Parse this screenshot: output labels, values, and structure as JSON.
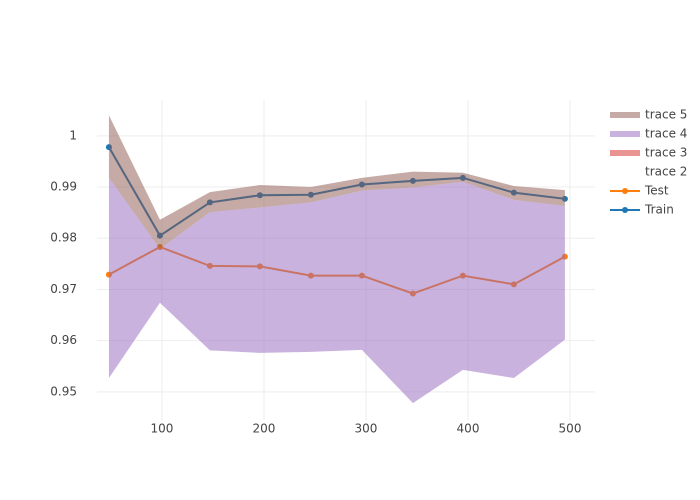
{
  "chart_data": {
    "type": "line",
    "x": [
      48,
      98,
      147,
      196,
      246,
      296,
      346,
      395,
      445,
      495
    ],
    "xlim": [
      36.3,
      524.5
    ],
    "xticks": [
      100,
      200,
      300,
      400,
      500
    ],
    "ylim": [
      0.9445,
      1.007
    ],
    "yticks": [
      0.95,
      0.96,
      0.97,
      0.98,
      0.99,
      1
    ],
    "grid": true,
    "series": [
      {
        "name": "trace 5",
        "kind": "band",
        "color": "rgba(140,86,75,0.5)",
        "upper": [
          1.004,
          0.9836,
          0.989,
          0.9904,
          0.99,
          0.9918,
          0.993,
          0.9928,
          0.9902,
          0.9894
        ],
        "lower": [
          0.9918,
          0.9779,
          0.9851,
          0.986,
          0.987,
          0.9893,
          0.9899,
          0.991,
          0.9875,
          0.9863
        ]
      },
      {
        "name": "trace 4",
        "kind": "band",
        "color": "rgba(148,103,189,0.5)",
        "upper": [
          0.9918,
          0.9779,
          0.9851,
          0.986,
          0.987,
          0.9893,
          0.9899,
          0.991,
          0.9875,
          0.9863
        ],
        "lower": [
          0.9527,
          0.9674,
          0.9581,
          0.9576,
          0.9578,
          0.9582,
          0.9478,
          0.9543,
          0.9527,
          0.9602
        ]
      },
      {
        "name": "trace 3",
        "kind": "band",
        "color": "rgba(214,39,40,0.5)"
      },
      {
        "name": "trace 2",
        "kind": "band"
      },
      {
        "name": "Test",
        "kind": "line",
        "color": "#ff7f0e",
        "values": [
          0.9729,
          0.9783,
          0.9746,
          0.9745,
          0.9727,
          0.9727,
          0.9692,
          0.9727,
          0.971,
          0.9764
        ]
      },
      {
        "name": "Train",
        "kind": "line",
        "color": "#1f77b4",
        "values": [
          0.9978,
          0.9805,
          0.987,
          0.9884,
          0.9885,
          0.9905,
          0.9912,
          0.9918,
          0.9889,
          0.9877
        ]
      }
    ]
  }
}
